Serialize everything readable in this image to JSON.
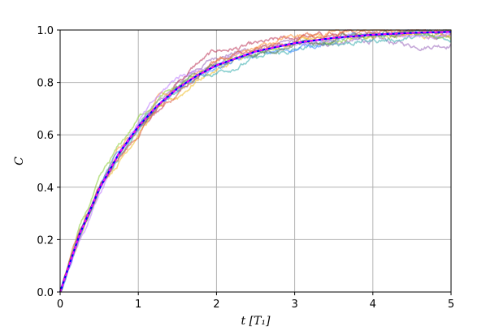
{
  "chart_data": {
    "type": "line",
    "title": "",
    "xlabel": "t [T₁]",
    "ylabel": "C",
    "xlim": [
      0,
      5
    ],
    "ylim": [
      0,
      1
    ],
    "xticks": [
      "0",
      "1",
      "2",
      "3",
      "4",
      "5"
    ],
    "yticks": [
      "0.0",
      "0.2",
      "0.4",
      "0.6",
      "0.8",
      "1.0"
    ],
    "grid": true,
    "legend": "none",
    "model": "1 - exp(-t)",
    "x": [
      0,
      0.25,
      0.5,
      0.75,
      1.0,
      1.25,
      1.5,
      1.75,
      2.0,
      2.5,
      3.0,
      3.5,
      4.0,
      4.5,
      5.0
    ],
    "series": [
      {
        "color": "#0000ff",
        "style": "bold",
        "values": [
          0,
          0.221,
          0.393,
          0.528,
          0.632,
          0.713,
          0.777,
          0.826,
          0.865,
          0.918,
          0.95,
          0.97,
          0.982,
          0.989,
          0.993
        ]
      },
      {
        "color": "#ff00ff",
        "style": "dashed",
        "values": [
          0,
          0.221,
          0.393,
          0.528,
          0.632,
          0.713,
          0.777,
          0.826,
          0.865,
          0.918,
          0.95,
          0.97,
          0.982,
          0.989,
          0.993
        ]
      },
      {
        "color": "#a070c0",
        "style": "noisy",
        "values": [
          0,
          0.22,
          0.4,
          0.52,
          0.64,
          0.72,
          0.79,
          0.85,
          0.9,
          0.93,
          0.95,
          0.95,
          0.96,
          0.94,
          0.95
        ]
      },
      {
        "color": "#c04060",
        "style": "noisy",
        "values": [
          0,
          0.23,
          0.38,
          0.53,
          0.62,
          0.7,
          0.8,
          0.87,
          0.92,
          0.94,
          0.97,
          0.98,
          0.99,
          0.99,
          0.99
        ]
      },
      {
        "color": "#ff9a40",
        "style": "noisy",
        "values": [
          0,
          0.21,
          0.39,
          0.55,
          0.63,
          0.74,
          0.76,
          0.83,
          0.88,
          0.93,
          0.98,
          0.99,
          1.0,
          1.0,
          1.0
        ]
      },
      {
        "color": "#f0c030",
        "style": "noisy",
        "values": [
          0,
          0.2,
          0.41,
          0.5,
          0.61,
          0.7,
          0.74,
          0.81,
          0.85,
          0.91,
          0.95,
          0.97,
          0.98,
          0.99,
          0.97
        ]
      },
      {
        "color": "#40b0b0",
        "style": "noisy",
        "values": [
          0,
          0.22,
          0.39,
          0.52,
          0.63,
          0.71,
          0.77,
          0.82,
          0.84,
          0.89,
          0.92,
          0.95,
          0.96,
          0.97,
          0.97
        ]
      },
      {
        "color": "#4090ff",
        "style": "noisy",
        "values": [
          0,
          0.22,
          0.4,
          0.53,
          0.63,
          0.7,
          0.76,
          0.82,
          0.86,
          0.9,
          0.93,
          0.96,
          0.98,
          0.99,
          0.99
        ]
      },
      {
        "color": "#90d040",
        "style": "noisy",
        "values": [
          0,
          0.24,
          0.42,
          0.55,
          0.66,
          0.74,
          0.78,
          0.83,
          0.86,
          0.91,
          0.94,
          0.96,
          0.97,
          0.98,
          0.96
        ]
      },
      {
        "color": "#c080ff",
        "style": "noisy",
        "values": [
          0,
          0.2,
          0.38,
          0.54,
          0.65,
          0.74,
          0.82,
          0.85,
          0.87,
          0.92,
          0.95,
          0.97,
          0.98,
          0.98,
          0.99
        ]
      },
      {
        "color": "#e06040",
        "style": "noisy",
        "values": [
          0,
          0.23,
          0.4,
          0.51,
          0.6,
          0.7,
          0.75,
          0.82,
          0.89,
          0.92,
          0.96,
          0.98,
          0.99,
          1.0,
          0.99
        ]
      },
      {
        "color": "#608060",
        "style": "noisy",
        "values": [
          0,
          0.21,
          0.39,
          0.52,
          0.63,
          0.72,
          0.78,
          0.84,
          0.87,
          0.91,
          0.95,
          0.97,
          0.98,
          0.99,
          0.99
        ]
      }
    ]
  }
}
